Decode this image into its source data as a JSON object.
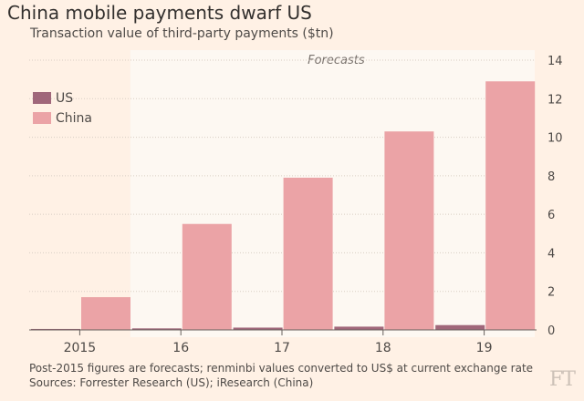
{
  "title": "China mobile payments dwarf US",
  "subtitle": "Transaction value of third-party payments ($tn)",
  "forecast_label": "Forecasts",
  "footnote": "Post-2015 figures are forecasts; renminbi values converted to US$ at current exchange rate",
  "source": "Sources: Forrester Research (US); iResearch (China)",
  "logo": "FT",
  "colors": {
    "background": "#fff1e5",
    "forecast_band": "#fdf8f2",
    "us": "#a0677a",
    "china": "#eba3a6",
    "grid": "#d8cdc3",
    "text": "#4e4a47"
  },
  "chart_data": {
    "type": "bar",
    "categories": [
      "2015",
      "16",
      "17",
      "18",
      "19"
    ],
    "series": [
      {
        "name": "US",
        "values": [
          0.05,
          0.08,
          0.12,
          0.17,
          0.25
        ]
      },
      {
        "name": "China",
        "values": [
          1.7,
          5.5,
          7.9,
          10.3,
          12.9
        ]
      }
    ],
    "ylim": [
      0,
      14
    ],
    "yticks": [
      0,
      2,
      4,
      6,
      8,
      10,
      12,
      14
    ],
    "y_axis_side": "right",
    "forecast_start_category": "16",
    "legend_position": "top-left",
    "grid": true
  }
}
